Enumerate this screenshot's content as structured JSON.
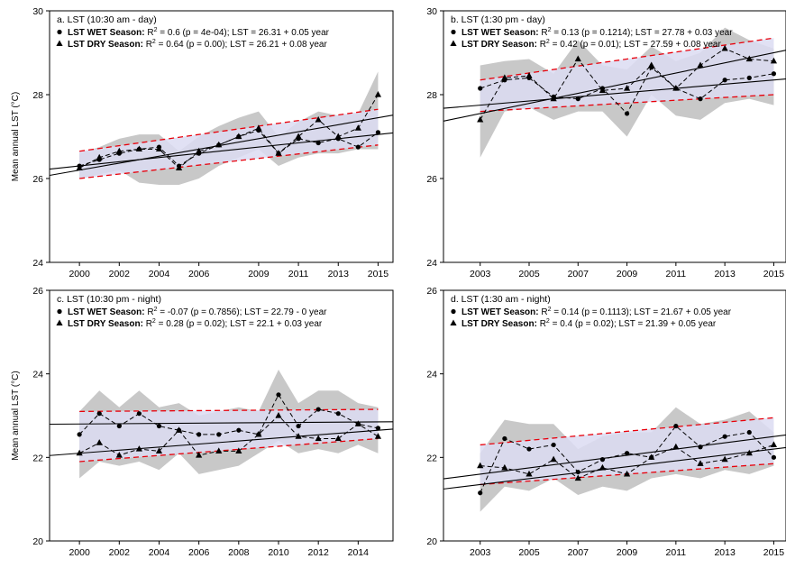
{
  "panels": [
    {
      "id": "a",
      "title": "a. LST (10:30 am - day)",
      "ylabel": "Mean annual LST (°C)",
      "ylim": [
        24,
        30
      ],
      "yticks": [
        24,
        26,
        28,
        30
      ],
      "xlim": [
        1998.5,
        2015.75
      ],
      "xticks": [
        2000,
        2002,
        2004,
        2006,
        2009,
        2011,
        2013,
        2015
      ],
      "legend": [
        {
          "marker": "circle",
          "label": "LST WET Season:",
          "r2_prefix": "R",
          "r2_sup": "2",
          "stats": " = 0.6 (p = 4e-04); LST = 26.31 + 0.05 year"
        },
        {
          "marker": "triangle",
          "label": "LST DRY Season:",
          "r2_prefix": "R",
          "r2_sup": "2",
          "stats": " = 0.64 (p = 0.00); LST = 26.21 + 0.08 year"
        }
      ]
    },
    {
      "id": "b",
      "title": "b. LST (1:30 pm - day)",
      "ylabel": "",
      "ylim": [
        24,
        30
      ],
      "yticks": [
        24,
        26,
        28,
        30
      ],
      "xlim": [
        2001.5,
        2015.5
      ],
      "xticks": [
        2003,
        2005,
        2007,
        2009,
        2011,
        2013,
        2015
      ],
      "legend": [
        {
          "marker": "circle",
          "label": "LST WET Season:",
          "r2_prefix": "R",
          "r2_sup": "2",
          "stats": " = 0.13 (p = 0.1214); LST = 27.78 + 0.03 year"
        },
        {
          "marker": "triangle",
          "label": "LST DRY Season:",
          "r2_prefix": "R",
          "r2_sup": "2",
          "stats": " = 0.42 (p = 0.01); LST = 27.59 + 0.08 year"
        }
      ]
    },
    {
      "id": "c",
      "title": "c. LST (10:30 pm - night)",
      "ylabel": "Mean annual LST (°C)",
      "ylim": [
        20,
        26
      ],
      "yticks": [
        20,
        22,
        24,
        26
      ],
      "xlim": [
        1998.5,
        2015.75
      ],
      "xticks": [
        2000,
        2002,
        2004,
        2006,
        2008,
        2010,
        2012,
        2014
      ],
      "legend": [
        {
          "marker": "circle",
          "label": "LST WET Season:",
          "r2_prefix": "R",
          "r2_sup": "2",
          "stats": " = -0.07 (p = 0.7856); LST = 22.79 - 0 year"
        },
        {
          "marker": "triangle",
          "label": "LST DRY Season:",
          "r2_prefix": "R",
          "r2_sup": "2",
          "stats": " = 0.28 (p = 0.02); LST = 22.1 + 0.03 year"
        }
      ]
    },
    {
      "id": "d",
      "title": "d. LST (1:30 am - night)",
      "ylabel": "",
      "ylim": [
        20,
        26
      ],
      "yticks": [
        20,
        22,
        24,
        26
      ],
      "xlim": [
        2001.5,
        2015.5
      ],
      "xticks": [
        2003,
        2005,
        2007,
        2009,
        2011,
        2013,
        2015
      ],
      "legend": [
        {
          "marker": "circle",
          "label": "LST WET Season:",
          "r2_prefix": "R",
          "r2_sup": "2",
          "stats": " = 0.14 (p = 0.1113); LST = 21.67 + 0.05 year"
        },
        {
          "marker": "triangle",
          "label": "LST DRY Season:",
          "r2_prefix": "R",
          "r2_sup": "2",
          "stats": " = 0.4 (p = 0.02); LST = 21.39 + 0.05 year"
        }
      ]
    }
  ],
  "colors": {
    "band_gray": "#c8c8c8",
    "conf_band": "#dcdcf2",
    "conf_line": "#e8000b",
    "series": "#000000",
    "axis": "#000000"
  },
  "chart_data": [
    {
      "type": "line",
      "title": "a. LST (10:30 am - day)",
      "ylabel": "Mean annual LST (°C)",
      "ylim": [
        24,
        30
      ],
      "x": [
        2000,
        2001,
        2002,
        2003,
        2004,
        2005,
        2006,
        2007,
        2008,
        2009,
        2010,
        2011,
        2012,
        2013,
        2014,
        2015
      ],
      "series": [
        {
          "name": "LST WET Season",
          "marker": "circle",
          "values": [
            26.3,
            26.45,
            26.6,
            26.7,
            26.75,
            26.3,
            26.6,
            26.8,
            27.0,
            27.15,
            26.6,
            26.95,
            26.85,
            26.95,
            26.75,
            27.1
          ]
        },
        {
          "name": "LST DRY Season",
          "marker": "triangle",
          "values": [
            26.25,
            26.5,
            26.65,
            26.7,
            26.7,
            26.25,
            26.65,
            26.8,
            27.0,
            27.2,
            26.6,
            27.0,
            27.4,
            27.0,
            27.2,
            28.0
          ]
        }
      ],
      "range_band": {
        "lower": [
          26.0,
          26.1,
          26.2,
          25.9,
          25.85,
          25.85,
          26.0,
          26.3,
          26.5,
          26.7,
          26.3,
          26.5,
          26.6,
          26.6,
          26.7,
          26.7
        ],
        "upper": [
          26.6,
          26.75,
          26.95,
          27.05,
          27.05,
          26.65,
          27.0,
          27.25,
          27.45,
          27.6,
          27.0,
          27.35,
          27.6,
          27.5,
          27.55,
          28.55
        ]
      },
      "conf_band": {
        "lower_start": 26.0,
        "lower_end": 26.8,
        "upper_start": 26.65,
        "upper_end": 27.65
      },
      "trend_lines": [
        {
          "name": "WET trend",
          "y_start": 26.3,
          "y_end": 27.05
        },
        {
          "name": "DRY trend",
          "y_start": 26.2,
          "y_end": 27.45
        }
      ]
    },
    {
      "type": "line",
      "title": "b. LST (1:30 pm - day)",
      "ylim": [
        24,
        30
      ],
      "x": [
        2003,
        2004,
        2005,
        2006,
        2007,
        2008,
        2009,
        2010,
        2011,
        2012,
        2013,
        2014,
        2015
      ],
      "series": [
        {
          "name": "LST WET Season",
          "marker": "circle",
          "values": [
            28.15,
            28.35,
            28.4,
            27.95,
            27.9,
            28.15,
            27.55,
            28.65,
            28.15,
            27.9,
            28.35,
            28.4,
            28.5
          ]
        },
        {
          "name": "LST DRY Season",
          "marker": "triangle",
          "values": [
            27.4,
            28.4,
            28.45,
            27.9,
            28.85,
            28.1,
            28.15,
            28.7,
            28.15,
            28.7,
            29.1,
            28.85,
            28.8
          ]
        }
      ],
      "range_band": {
        "lower": [
          26.5,
          27.6,
          27.7,
          27.4,
          27.6,
          27.6,
          27.0,
          28.0,
          27.5,
          27.4,
          27.8,
          27.9,
          27.75
        ],
        "upper": [
          28.7,
          28.8,
          28.85,
          28.5,
          29.3,
          28.7,
          28.6,
          29.15,
          28.8,
          29.0,
          29.6,
          29.3,
          29.1
        ]
      },
      "conf_band": {
        "lower_start": 27.6,
        "lower_end": 28.0,
        "upper_start": 28.35,
        "upper_end": 29.35
      },
      "trend_lines": [
        {
          "name": "WET trend",
          "y_start": 27.75,
          "y_end": 28.35
        },
        {
          "name": "DRY trend",
          "y_start": 27.55,
          "y_end": 29.0
        }
      ]
    },
    {
      "type": "line",
      "title": "c. LST (10:30 pm - night)",
      "ylabel": "Mean annual LST (°C)",
      "ylim": [
        20,
        26
      ],
      "x": [
        2000,
        2001,
        2002,
        2003,
        2004,
        2005,
        2006,
        2007,
        2008,
        2009,
        2010,
        2011,
        2012,
        2013,
        2014,
        2015
      ],
      "series": [
        {
          "name": "LST WET Season",
          "marker": "circle",
          "values": [
            22.55,
            23.05,
            22.75,
            23.05,
            22.75,
            22.65,
            22.55,
            22.55,
            22.65,
            22.55,
            23.5,
            22.75,
            23.15,
            23.05,
            22.8,
            22.7
          ]
        },
        {
          "name": "LST DRY Season",
          "marker": "triangle",
          "values": [
            22.1,
            22.35,
            22.05,
            22.2,
            22.15,
            22.65,
            22.05,
            22.15,
            22.15,
            22.55,
            23.0,
            22.5,
            22.45,
            22.45,
            22.8,
            22.5
          ]
        }
      ],
      "range_band": {
        "lower": [
          21.5,
          21.9,
          21.8,
          21.9,
          21.7,
          22.1,
          21.6,
          21.7,
          21.8,
          22.1,
          22.4,
          22.1,
          22.2,
          22.1,
          22.3,
          22.1
        ],
        "upper": [
          23.1,
          23.6,
          23.2,
          23.6,
          23.2,
          23.3,
          23.0,
          23.1,
          23.2,
          23.1,
          24.1,
          23.3,
          23.6,
          23.6,
          23.3,
          23.2
        ]
      },
      "conf_band": {
        "lower_start": 21.9,
        "lower_end": 22.45,
        "upper_start": 23.1,
        "upper_end": 23.15
      },
      "trend_lines": [
        {
          "name": "WET trend",
          "y_start": 22.8,
          "y_end": 22.85
        },
        {
          "name": "DRY trend",
          "y_start": 22.1,
          "y_end": 22.65
        }
      ]
    },
    {
      "type": "line",
      "title": "d. LST (1:30 am - night)",
      "ylim": [
        20,
        26
      ],
      "x": [
        2003,
        2004,
        2005,
        2006,
        2007,
        2008,
        2009,
        2010,
        2011,
        2012,
        2013,
        2014,
        2015
      ],
      "series": [
        {
          "name": "LST WET Season",
          "marker": "circle",
          "values": [
            21.15,
            22.45,
            22.2,
            22.3,
            21.65,
            21.95,
            22.1,
            22.0,
            22.75,
            22.25,
            22.5,
            22.6,
            22.0
          ]
        },
        {
          "name": "LST DRY Season",
          "marker": "triangle",
          "values": [
            21.8,
            21.75,
            21.6,
            21.95,
            21.5,
            21.75,
            21.6,
            22.0,
            22.25,
            21.85,
            21.95,
            22.1,
            22.3
          ]
        }
      ],
      "range_band": {
        "lower": [
          20.7,
          21.3,
          21.2,
          21.5,
          21.1,
          21.3,
          21.2,
          21.5,
          21.6,
          21.5,
          21.7,
          21.6,
          21.8
        ],
        "upper": [
          22.1,
          22.9,
          22.8,
          22.8,
          22.2,
          22.5,
          22.6,
          22.6,
          23.2,
          22.8,
          22.9,
          23.1,
          22.6
        ]
      },
      "conf_band": {
        "lower_start": 21.35,
        "lower_end": 21.85,
        "upper_start": 22.3,
        "upper_end": 22.95
      },
      "trend_lines": [
        {
          "name": "WET trend",
          "y_start": 21.6,
          "y_end": 22.5
        },
        {
          "name": "DRY trend",
          "y_start": 21.35,
          "y_end": 22.2
        }
      ]
    }
  ]
}
